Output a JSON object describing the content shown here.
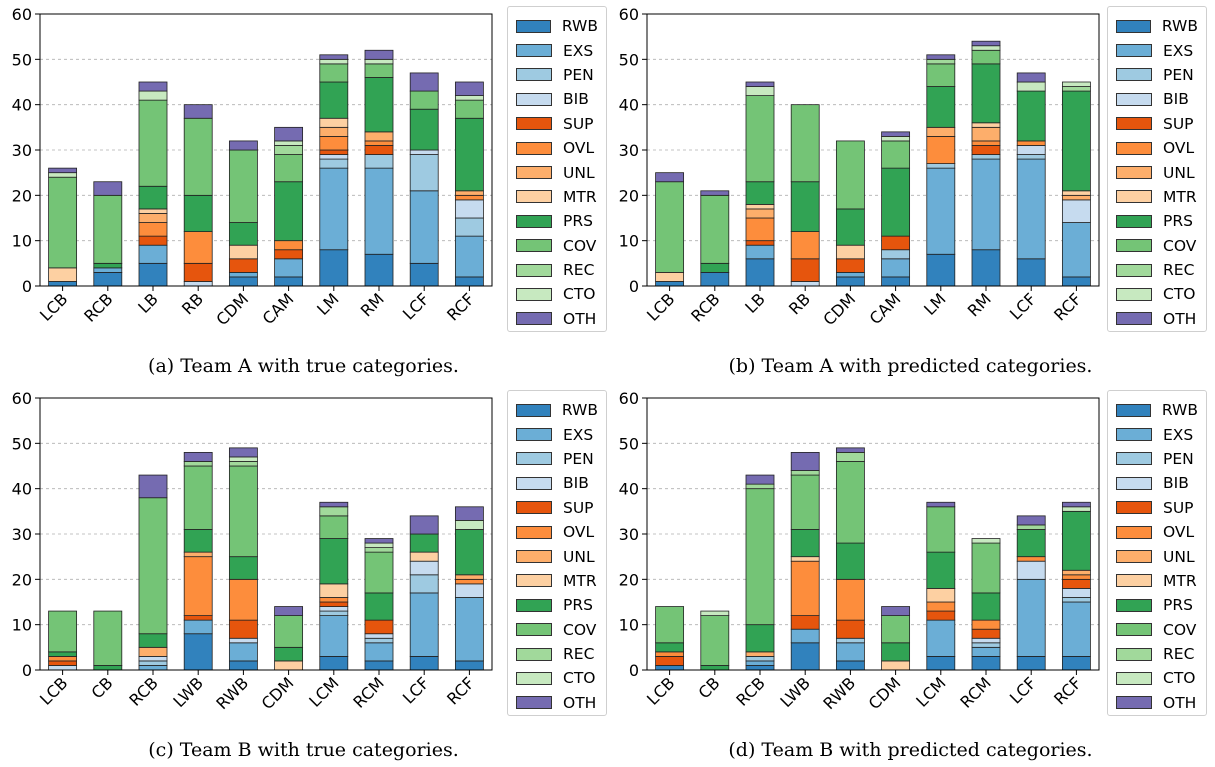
{
  "categories": [
    {
      "code": "RWB",
      "color": "#3182bd"
    },
    {
      "code": "EXS",
      "color": "#6baed6"
    },
    {
      "code": "PEN",
      "color": "#9ecae1"
    },
    {
      "code": "BIB",
      "color": "#c6dbef"
    },
    {
      "code": "SUP",
      "color": "#e6550d"
    },
    {
      "code": "OVL",
      "color": "#fd8d3c"
    },
    {
      "code": "UNL",
      "color": "#fdae6b"
    },
    {
      "code": "MTR",
      "color": "#fdd0a2"
    },
    {
      "code": "PRS",
      "color": "#31a354"
    },
    {
      "code": "COV",
      "color": "#74c476"
    },
    {
      "code": "REC",
      "color": "#a1d99b"
    },
    {
      "code": "CTO",
      "color": "#c7e9c0"
    },
    {
      "code": "OTH",
      "color": "#756bb1"
    }
  ],
  "chart_data": [
    {
      "type": "bar",
      "stacked": true,
      "caption": "(a) Team A with true categories.",
      "ylim": [
        0,
        60
      ],
      "yticks": [
        0,
        10,
        20,
        30,
        40,
        50,
        60
      ],
      "grid": true,
      "legend_position": "right",
      "categories": [
        "LCB",
        "RCB",
        "LB",
        "RB",
        "CDM",
        "CAM",
        "LM",
        "RM",
        "LCF",
        "RCF"
      ],
      "series": [
        {
          "name": "RWB",
          "values": [
            1,
            3,
            5,
            0,
            2,
            2,
            8,
            7,
            5,
            2
          ]
        },
        {
          "name": "EXS",
          "values": [
            0,
            1,
            4,
            0,
            1,
            4,
            18,
            19,
            16,
            9
          ]
        },
        {
          "name": "PEN",
          "values": [
            0,
            0,
            0,
            0,
            0,
            0,
            2,
            3,
            8,
            4
          ]
        },
        {
          "name": "BIB",
          "values": [
            0,
            0,
            0,
            1,
            0,
            0,
            1,
            0,
            1,
            4
          ]
        },
        {
          "name": "SUP",
          "values": [
            0,
            0,
            2,
            4,
            3,
            2,
            1,
            2,
            0,
            0
          ]
        },
        {
          "name": "OVL",
          "values": [
            0,
            0,
            3,
            7,
            0,
            2,
            3,
            1,
            0,
            1
          ]
        },
        {
          "name": "UNL",
          "values": [
            0,
            0,
            2,
            0,
            0,
            0,
            2,
            2,
            0,
            1
          ]
        },
        {
          "name": "MTR",
          "values": [
            3,
            0,
            1,
            0,
            3,
            0,
            2,
            0,
            0,
            0
          ]
        },
        {
          "name": "PRS",
          "values": [
            0,
            1,
            5,
            8,
            5,
            13,
            8,
            12,
            9,
            16
          ]
        },
        {
          "name": "COV",
          "values": [
            20,
            15,
            19,
            17,
            16,
            6,
            4,
            3,
            4,
            4
          ]
        },
        {
          "name": "REC",
          "values": [
            0,
            0,
            0,
            0,
            0,
            2,
            0,
            0,
            0,
            0
          ]
        },
        {
          "name": "CTO",
          "values": [
            1,
            0,
            2,
            0,
            0,
            1,
            1,
            1,
            0,
            1
          ]
        },
        {
          "name": "OTH",
          "values": [
            1,
            3,
            2,
            3,
            2,
            3,
            1,
            2,
            4,
            3
          ]
        }
      ]
    },
    {
      "type": "bar",
      "stacked": true,
      "caption": "(b) Team A with predicted categories.",
      "ylim": [
        0,
        60
      ],
      "yticks": [
        0,
        10,
        20,
        30,
        40,
        50,
        60
      ],
      "grid": true,
      "legend_position": "right",
      "categories": [
        "LCB",
        "RCB",
        "LB",
        "RB",
        "CDM",
        "CAM",
        "LM",
        "RM",
        "LCF",
        "RCF"
      ],
      "series": [
        {
          "name": "RWB",
          "values": [
            1,
            3,
            6,
            0,
            2,
            2,
            7,
            8,
            6,
            2
          ]
        },
        {
          "name": "EXS",
          "values": [
            0,
            0,
            3,
            0,
            1,
            4,
            19,
            20,
            22,
            12
          ]
        },
        {
          "name": "PEN",
          "values": [
            0,
            0,
            0,
            0,
            0,
            2,
            1,
            1,
            1,
            0
          ]
        },
        {
          "name": "BIB",
          "values": [
            0,
            0,
            0,
            1,
            0,
            0,
            0,
            0,
            2,
            5
          ]
        },
        {
          "name": "SUP",
          "values": [
            0,
            0,
            1,
            5,
            3,
            3,
            0,
            2,
            0,
            0
          ]
        },
        {
          "name": "OVL",
          "values": [
            0,
            0,
            5,
            6,
            0,
            0,
            6,
            1,
            1,
            0
          ]
        },
        {
          "name": "UNL",
          "values": [
            0,
            0,
            2,
            0,
            0,
            0,
            2,
            3,
            0,
            1
          ]
        },
        {
          "name": "MTR",
          "values": [
            2,
            0,
            1,
            0,
            3,
            0,
            0,
            1,
            0,
            1
          ]
        },
        {
          "name": "PRS",
          "values": [
            0,
            2,
            5,
            11,
            8,
            15,
            9,
            13,
            11,
            22
          ]
        },
        {
          "name": "COV",
          "values": [
            20,
            15,
            19,
            17,
            15,
            6,
            5,
            3,
            0,
            0
          ]
        },
        {
          "name": "REC",
          "values": [
            0,
            0,
            0,
            0,
            0,
            0,
            1,
            0,
            0,
            1
          ]
        },
        {
          "name": "CTO",
          "values": [
            0,
            0,
            2,
            0,
            0,
            1,
            0,
            1,
            2,
            1
          ]
        },
        {
          "name": "OTH",
          "values": [
            2,
            1,
            1,
            0,
            0,
            1,
            1,
            1,
            2,
            0
          ]
        }
      ]
    },
    {
      "type": "bar",
      "stacked": true,
      "caption": "(c) Team B with true categories.",
      "ylim": [
        0,
        60
      ],
      "yticks": [
        0,
        10,
        20,
        30,
        40,
        50,
        60
      ],
      "grid": true,
      "legend_position": "right",
      "categories": [
        "LCB",
        "CB",
        "RCB",
        "LWB",
        "RWB",
        "CDM",
        "LCM",
        "RCM",
        "LCF",
        "RCF"
      ],
      "series": [
        {
          "name": "RWB",
          "values": [
            0,
            0,
            0,
            8,
            2,
            0,
            3,
            2,
            3,
            2
          ]
        },
        {
          "name": "EXS",
          "values": [
            0,
            0,
            1,
            3,
            4,
            0,
            9,
            4,
            14,
            14
          ]
        },
        {
          "name": "PEN",
          "values": [
            0,
            0,
            1,
            0,
            0,
            0,
            1,
            1,
            4,
            0
          ]
        },
        {
          "name": "BIB",
          "values": [
            1,
            0,
            1,
            0,
            1,
            0,
            1,
            1,
            3,
            3
          ]
        },
        {
          "name": "SUP",
          "values": [
            1,
            0,
            0,
            1,
            4,
            0,
            1,
            3,
            0,
            0
          ]
        },
        {
          "name": "OVL",
          "values": [
            1,
            0,
            0,
            13,
            9,
            0,
            1,
            0,
            0,
            1
          ]
        },
        {
          "name": "UNL",
          "values": [
            0,
            0,
            2,
            1,
            0,
            0,
            0,
            0,
            0,
            1
          ]
        },
        {
          "name": "MTR",
          "values": [
            0,
            0,
            0,
            0,
            0,
            2,
            3,
            0,
            2,
            0
          ]
        },
        {
          "name": "PRS",
          "values": [
            1,
            1,
            3,
            5,
            5,
            3,
            10,
            6,
            4,
            10
          ]
        },
        {
          "name": "COV",
          "values": [
            9,
            12,
            30,
            14,
            20,
            7,
            5,
            9,
            0,
            0
          ]
        },
        {
          "name": "REC",
          "values": [
            0,
            0,
            0,
            1,
            1,
            0,
            2,
            1,
            0,
            0
          ]
        },
        {
          "name": "CTO",
          "values": [
            0,
            0,
            0,
            0,
            1,
            0,
            0,
            1,
            0,
            2
          ]
        },
        {
          "name": "OTH",
          "values": [
            0,
            0,
            5,
            2,
            2,
            2,
            1,
            1,
            4,
            3
          ]
        }
      ]
    },
    {
      "type": "bar",
      "stacked": true,
      "caption": "(d) Team B with predicted categories.",
      "ylim": [
        0,
        60
      ],
      "yticks": [
        0,
        10,
        20,
        30,
        40,
        50,
        60
      ],
      "grid": true,
      "legend_position": "right",
      "categories": [
        "LCB",
        "CB",
        "RCB",
        "LWB",
        "RWB",
        "CDM",
        "LCM",
        "RCM",
        "LCF",
        "RCF"
      ],
      "series": [
        {
          "name": "RWB",
          "values": [
            1,
            0,
            1,
            6,
            2,
            0,
            3,
            3,
            3,
            3
          ]
        },
        {
          "name": "EXS",
          "values": [
            0,
            0,
            1,
            3,
            4,
            0,
            8,
            2,
            17,
            12
          ]
        },
        {
          "name": "PEN",
          "values": [
            0,
            0,
            1,
            0,
            1,
            0,
            0,
            1,
            0,
            1
          ]
        },
        {
          "name": "BIB",
          "values": [
            0,
            0,
            0,
            0,
            0,
            0,
            0,
            1,
            4,
            2
          ]
        },
        {
          "name": "SUP",
          "values": [
            2,
            0,
            0,
            3,
            4,
            0,
            2,
            2,
            0,
            2
          ]
        },
        {
          "name": "OVL",
          "values": [
            1,
            0,
            0,
            12,
            9,
            0,
            2,
            2,
            1,
            1
          ]
        },
        {
          "name": "UNL",
          "values": [
            0,
            0,
            1,
            0,
            0,
            0,
            0,
            0,
            0,
            1
          ]
        },
        {
          "name": "MTR",
          "values": [
            0,
            0,
            0,
            1,
            0,
            2,
            3,
            0,
            0,
            0
          ]
        },
        {
          "name": "PRS",
          "values": [
            2,
            1,
            6,
            6,
            8,
            4,
            8,
            6,
            6,
            13
          ]
        },
        {
          "name": "COV",
          "values": [
            8,
            11,
            30,
            12,
            18,
            6,
            10,
            11,
            0,
            0
          ]
        },
        {
          "name": "REC",
          "values": [
            0,
            0,
            1,
            1,
            2,
            0,
            0,
            0,
            1,
            0
          ]
        },
        {
          "name": "CTO",
          "values": [
            0,
            1,
            0,
            0,
            0,
            0,
            0,
            1,
            0,
            1
          ]
        },
        {
          "name": "OTH",
          "values": [
            0,
            0,
            2,
            4,
            1,
            2,
            1,
            0,
            2,
            1
          ]
        }
      ]
    }
  ]
}
